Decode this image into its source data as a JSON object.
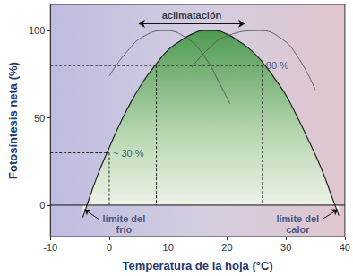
{
  "chart_data": {
    "type": "line",
    "xlabel": "Temperatura de la hoja (°C)",
    "ylabel": "Fotosíntesis neta (%)",
    "xlim": [
      -10,
      40
    ],
    "xticks": [
      -10,
      0,
      10,
      20,
      30,
      40
    ],
    "ylim": [
      -18,
      115
    ],
    "yticks": [
      0,
      50,
      100
    ],
    "grid": false,
    "series": [
      {
        "type": "area",
        "color": "#222222",
        "x": [
          -4.5,
          -4,
          -2,
          0,
          2,
          4,
          6,
          8,
          10,
          12,
          14,
          16,
          17,
          18,
          20,
          22,
          24,
          26,
          28,
          30,
          32,
          34,
          36,
          38,
          39
        ],
        "values": [
          -7,
          -2,
          17,
          33,
          48,
          61,
          72,
          81,
          89,
          94,
          98,
          100,
          100,
          100,
          98,
          94,
          89,
          82,
          73,
          63,
          50,
          36,
          21,
          3,
          -6
        ]
      },
      {
        "type": "line",
        "color": "#555555",
        "x": [
          0,
          3,
          6,
          9.5,
          13,
          16,
          19,
          20.5
        ],
        "values": [
          74,
          88,
          97,
          100,
          96,
          86,
          68,
          58
        ]
      },
      {
        "type": "line",
        "color": "#555555",
        "x": [
          14,
          17,
          20,
          25.5,
          29,
          32,
          35
        ],
        "values": [
          79,
          90,
          97,
          100,
          96,
          85,
          66
        ]
      }
    ],
    "reference_lines": [
      {
        "y": 0
      }
    ],
    "thresholds": [
      {
        "y": 80,
        "x": [
          8,
          26
        ],
        "label": "80 %"
      },
      {
        "y": 30,
        "x": [
          0
        ],
        "label": "~ 30 %"
      }
    ],
    "annotations": [
      {
        "text": "aclimatación",
        "x": [
          5,
          23
        ],
        "y": 104,
        "arrow": "both"
      },
      {
        "text": "límite del\nfrío",
        "x": 2.5,
        "y": -11,
        "arrow_from": [
          -1.8,
          -8
        ],
        "arrow_to": [
          -4.2,
          -2.5
        ]
      },
      {
        "text": "límite del\ncalor",
        "x": 32,
        "y": -11,
        "arrow_from": [
          36.2,
          -8
        ],
        "arrow_to": [
          38.8,
          -2.5
        ]
      }
    ]
  }
}
